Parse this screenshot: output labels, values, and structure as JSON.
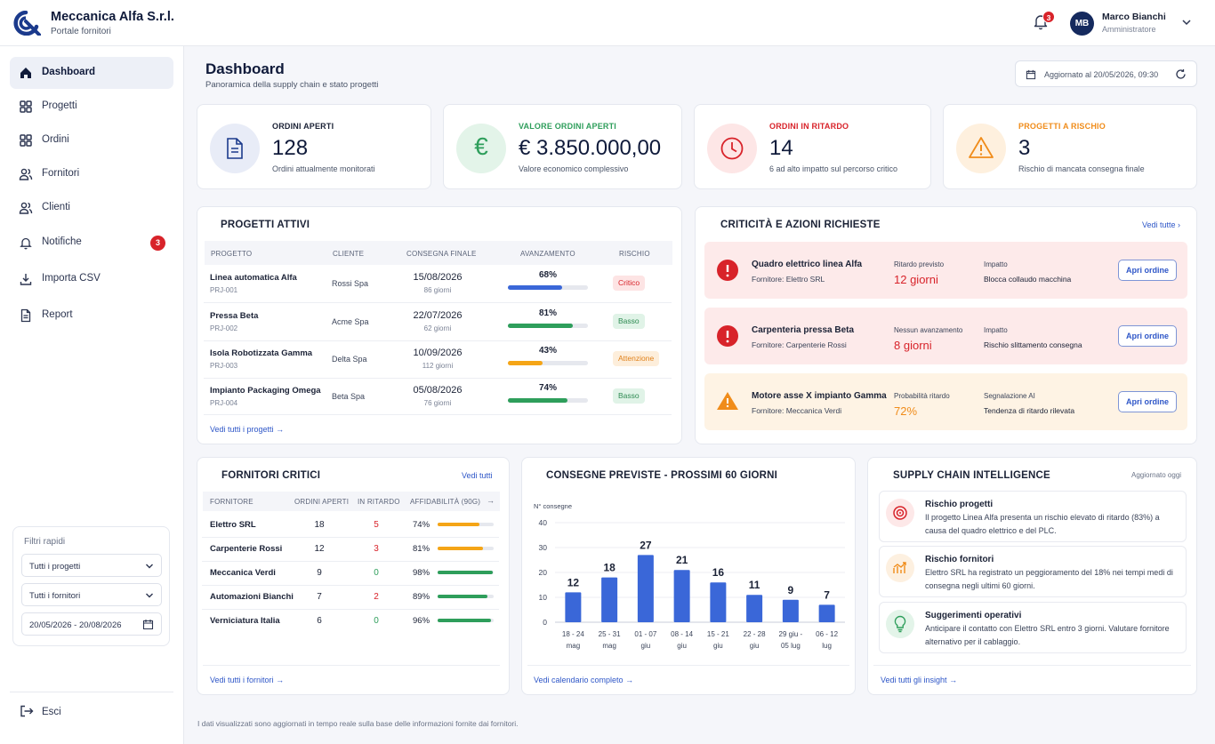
{
  "brand": {
    "name": "Meccanica Alfa S.r.l.",
    "subtitle": "Portale fornitori"
  },
  "header": {
    "notifications_count": "3",
    "user_initials": "MB",
    "user_name": "Marco Bianchi",
    "user_role": "Amministratore"
  },
  "sidebar": {
    "items": [
      {
        "label": "Dashboard",
        "icon": "home-icon",
        "active": true
      },
      {
        "label": "Progetti",
        "icon": "grid-icon"
      },
      {
        "label": "Ordini",
        "icon": "grid-icon"
      },
      {
        "label": "Fornitori",
        "icon": "users-icon"
      },
      {
        "label": "Clienti",
        "icon": "users-icon"
      },
      {
        "label": "Notifiche",
        "icon": "bell-icon",
        "badge": "3"
      },
      {
        "label": "Importa CSV",
        "icon": "upload-icon"
      },
      {
        "label": "Report",
        "icon": "document-icon"
      }
    ],
    "filters": {
      "title": "Filtri rapidi",
      "projects": "Tutti i progetti",
      "suppliers": "Tutti i fornitori",
      "date_range": "20/05/2026 - 20/08/2026"
    },
    "logout": "Esci"
  },
  "page": {
    "title": "Dashboard",
    "subtitle": "Panoramica della supply chain e stato progetti",
    "updated": "Aggiornato al 20/05/2026, 09:30"
  },
  "kpis": [
    {
      "label": "ORDINI APERTI",
      "value": "128",
      "sub": "Ordini attualmente monitorati",
      "color": "#1b2236",
      "icon": "document-icon"
    },
    {
      "label": "VALORE ORDINI APERTI",
      "value": "€ 3.850.000,00",
      "sub": "Valore economico complessivo",
      "color": "#2e9e5b",
      "icon": "euro-icon"
    },
    {
      "label": "ORDINI IN RITARDO",
      "value": "14",
      "sub": "6 ad alto impatto sul percorso critico",
      "color": "#d8232a",
      "icon": "clock-icon"
    },
    {
      "label": "PROGETTI A RISCHIO",
      "value": "3",
      "sub": "Rischio di mancata consegna finale",
      "color": "#f08c1a",
      "icon": "warning-icon"
    }
  ],
  "projects": {
    "title": "PROGETTI ATTIVI",
    "columns": [
      "PROGETTO",
      "CLIENTE",
      "CONSEGNA FINALE",
      "AVANZAMENTO",
      "RISCHIO"
    ],
    "rows": [
      {
        "name": "Linea automatica Alfa",
        "code": "PRJ-001",
        "client": "Rossi Spa",
        "date": "15/08/2026",
        "days": "86 giorni",
        "progress": "68%",
        "progress_value": 68,
        "bar_color": "#3a67d8",
        "risk": "Critico",
        "risk_bg": "#fde4e4",
        "risk_fg": "#d8232a"
      },
      {
        "name": "Pressa Beta",
        "code": "PRJ-002",
        "client": "Acme Spa",
        "date": "22/07/2026",
        "days": "62 giorni",
        "progress": "81%",
        "progress_value": 81,
        "bar_color": "#2e9e5b",
        "risk": "Basso",
        "risk_bg": "#e0f3e7",
        "risk_fg": "#2e8a52"
      },
      {
        "name": "Isola Robotizzata Gamma",
        "code": "PRJ-003",
        "client": "Delta Spa",
        "date": "10/09/2026",
        "days": "112 giorni",
        "progress": "43%",
        "progress_value": 43,
        "bar_color": "#f5a516",
        "risk": "Attenzione",
        "risk_bg": "#fdeedb",
        "risk_fg": "#e0811a"
      },
      {
        "name": "Impianto Packaging Omega",
        "code": "PRJ-004",
        "client": "Beta Spa",
        "date": "05/08/2026",
        "days": "76 giorni",
        "progress": "74%",
        "progress_value": 74,
        "bar_color": "#2e9e5b",
        "risk": "Basso",
        "risk_bg": "#e0f3e7",
        "risk_fg": "#2e8a52"
      }
    ],
    "link": "Vedi tutti i progetti"
  },
  "critical": {
    "title": "CRITICITÀ E AZIONI RICHIESTE",
    "link": "Vedi tutte",
    "items": [
      {
        "title": "Quadro elettrico linea Alfa",
        "supplier": "Fornitore: Elettro SRL",
        "metric_label": "Ritardo previsto",
        "metric_value": "12 giorni",
        "impact_label": "Impatto",
        "impact_value": "Blocca collaudo macchina",
        "button": "Apri ordine",
        "bg": "#fdeaea",
        "accent": "#d8232a",
        "icon": "alert-circle-icon"
      },
      {
        "title": "Carpenteria pressa Beta",
        "supplier": "Fornitore: Carpenterie Rossi",
        "metric_label": "Nessun avanzamento",
        "metric_value": "8 giorni",
        "impact_label": "Impatto",
        "impact_value": "Rischio slittamento consegna",
        "button": "Apri ordine",
        "bg": "#fdeaea",
        "accent": "#d8232a",
        "icon": "alert-circle-icon"
      },
      {
        "title": "Motore asse X impianto Gamma",
        "supplier": "Fornitore: Meccanica Verdi",
        "metric_label": "Probabilità ritardo",
        "metric_value": "72%",
        "impact_label": "Segnalazione AI",
        "impact_value": "Tendenza di ritardo rilevata",
        "button": "Apri ordine",
        "bg": "#fef3e4",
        "accent": "#f08c1a",
        "icon": "warning-icon"
      }
    ]
  },
  "suppliers": {
    "title": "FORNITORI CRITICI",
    "link_top": "Vedi tutti",
    "columns": [
      "FORNITORE",
      "ORDINI APERTI",
      "IN RITARDO",
      "AFFIDABILITÀ (90G)"
    ],
    "rows": [
      {
        "name": "Elettro SRL",
        "orders": "18",
        "late": "5",
        "late_color": "#d8232a",
        "reliability": "74%",
        "reliability_value": 74,
        "bar_color": "#f5a516"
      },
      {
        "name": "Carpenterie Rossi",
        "orders": "12",
        "late": "3",
        "late_color": "#d8232a",
        "reliability": "81%",
        "reliability_value": 81,
        "bar_color": "#f5a516"
      },
      {
        "name": "Meccanica Verdi",
        "orders": "9",
        "late": "0",
        "late_color": "#2e9e5b",
        "reliability": "98%",
        "reliability_value": 98,
        "bar_color": "#2e9e5b"
      },
      {
        "name": "Automazioni Bianchi",
        "orders": "7",
        "late": "2",
        "late_color": "#d8232a",
        "reliability": "89%",
        "reliability_value": 89,
        "bar_color": "#2e9e5b"
      },
      {
        "name": "Verniciatura Italia",
        "orders": "6",
        "late": "0",
        "late_color": "#2e9e5b",
        "reliability": "96%",
        "reliability_value": 96,
        "bar_color": "#2e9e5b"
      }
    ],
    "link": "Vedi tutti i fornitori"
  },
  "deliveries": {
    "title": "CONSEGNE PREVISTE - PROSSIMI 60 GIORNI",
    "link": "Vedi calendario completo"
  },
  "chart_data": {
    "type": "bar",
    "ylabel": "N° consegne",
    "ylim": [
      0,
      40
    ],
    "yticks": [
      0,
      10,
      20,
      30,
      40
    ],
    "categories": [
      [
        "18 - 24",
        "mag"
      ],
      [
        "25 - 31",
        "mag"
      ],
      [
        "01 - 07",
        "giu"
      ],
      [
        "08 - 14",
        "giu"
      ],
      [
        "15 - 21",
        "giu"
      ],
      [
        "22 - 28",
        "giu"
      ],
      [
        "29 giu -",
        "05 lug"
      ],
      [
        "06 - 12",
        "lug"
      ]
    ],
    "values": [
      12,
      18,
      27,
      21,
      16,
      11,
      9,
      7
    ],
    "color": "#3a67d8",
    "grid": true
  },
  "intelligence": {
    "title": "SUPPLY CHAIN INTELLIGENCE",
    "updated": "Aggiornato oggi",
    "items": [
      {
        "title": "Rischio progetti",
        "text": "Il progetto Linea Alfa presenta un rischio elevato di ritardo (83%) a causa del quadro elettrico e del PLC.",
        "icon": "target-icon",
        "bg": "#fde8e8",
        "color": "#d8232a"
      },
      {
        "title": "Rischio fornitori",
        "text": "Elettro SRL ha registrato un peggioramento del 18% nei tempi medi di consegna negli ultimi 60 giorni.",
        "icon": "trend-icon",
        "bg": "#fdf0e0",
        "color": "#f08c1a"
      },
      {
        "title": "Suggerimenti operativi",
        "text": "Anticipare il contatto con Elettro SRL entro 3 giorni. Valutare fornitore alternativo per il cablaggio.",
        "icon": "lightbulb-icon",
        "bg": "#e3f4e9",
        "color": "#2e9e5b"
      }
    ],
    "link": "Vedi tutti gli insight"
  },
  "footer": "I dati visualizzati sono aggiornati in tempo reale sulla base delle informazioni fornite dai fornitori."
}
